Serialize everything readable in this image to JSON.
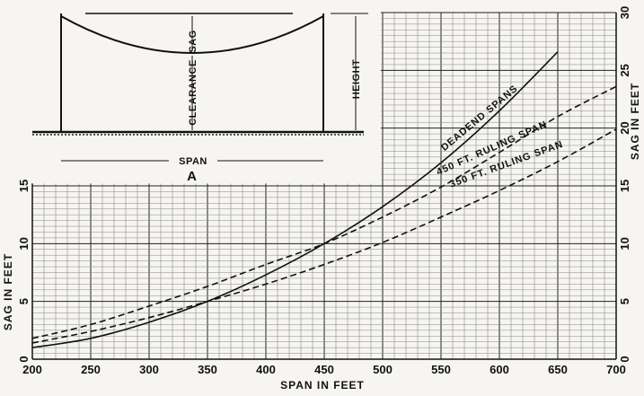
{
  "chart_data": {
    "type": "line",
    "xlabel": "SPAN IN FEET",
    "ylabel_left": "SAG IN FEET",
    "ylabel_right": "SAG IN FEET",
    "x_ticks": [
      200,
      250,
      300,
      350,
      400,
      450,
      500,
      550,
      600,
      650,
      700
    ],
    "y_left_ticks": [
      0,
      5,
      10,
      15
    ],
    "y_right_ticks": [
      0,
      5,
      10,
      15,
      20,
      25,
      30
    ],
    "xlim": [
      200,
      700
    ],
    "ylim": [
      0,
      30
    ],
    "grid": true,
    "series": [
      {
        "name": "DEADEND SPANS",
        "style": "solid",
        "x": [
          200,
          250,
          300,
          350,
          400,
          450,
          500,
          550,
          600,
          650
        ],
        "y": [
          1.0,
          1.8,
          3.2,
          5.0,
          7.3,
          10.0,
          13.2,
          17.0,
          21.5,
          26.6
        ]
      },
      {
        "name": "450 FT. RULING SPAN",
        "style": "dashed",
        "x": [
          200,
          250,
          300,
          350,
          400,
          450,
          500,
          550,
          600,
          650,
          700
        ],
        "y": [
          1.8,
          3.0,
          4.6,
          6.3,
          8.2,
          10.0,
          12.3,
          14.9,
          17.9,
          21.0,
          23.6
        ]
      },
      {
        "name": "350 FT. RULING SPAN",
        "style": "dashed",
        "x": [
          200,
          250,
          300,
          350,
          400,
          450,
          500,
          550,
          600,
          650,
          700
        ],
        "y": [
          1.4,
          2.4,
          3.6,
          5.0,
          6.5,
          8.2,
          10.1,
          12.3,
          14.6,
          17.1,
          19.9
        ]
      }
    ]
  },
  "diagram": {
    "label": "A",
    "span": "SPAN",
    "sag": "SAG",
    "clearance": "CLEARANCE",
    "height": "HEIGHT"
  }
}
